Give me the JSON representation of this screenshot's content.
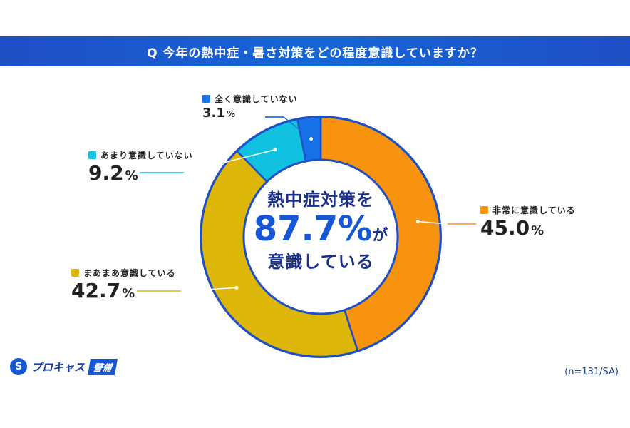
{
  "header": {
    "question": "Q 今年の熱中症・暑さ対策をどの程度意識していますか？"
  },
  "center": {
    "line1": "熱中症対策を",
    "value": "87.7%",
    "suffix": "が",
    "line3": "意識している"
  },
  "chart_data": {
    "type": "pie",
    "donut": true,
    "unit": "%",
    "categories": [
      "非常に意識している",
      "まあまあ意識している",
      "あまり意識していない",
      "全く意識していない"
    ],
    "values": [
      45.0,
      42.7,
      9.2,
      3.1
    ],
    "colors": [
      "#f7930e",
      "#dcb70a",
      "#10c2e0",
      "#1672e6"
    ],
    "ring_color": "#1f4fc4",
    "labels_text": [
      "45.0",
      "42.7",
      "9.2",
      "3.1"
    ],
    "legend": "callouts"
  },
  "footer": {
    "logo_text": "プロキャス",
    "logo_tag": "警備",
    "note": "(n=131/SA)"
  }
}
